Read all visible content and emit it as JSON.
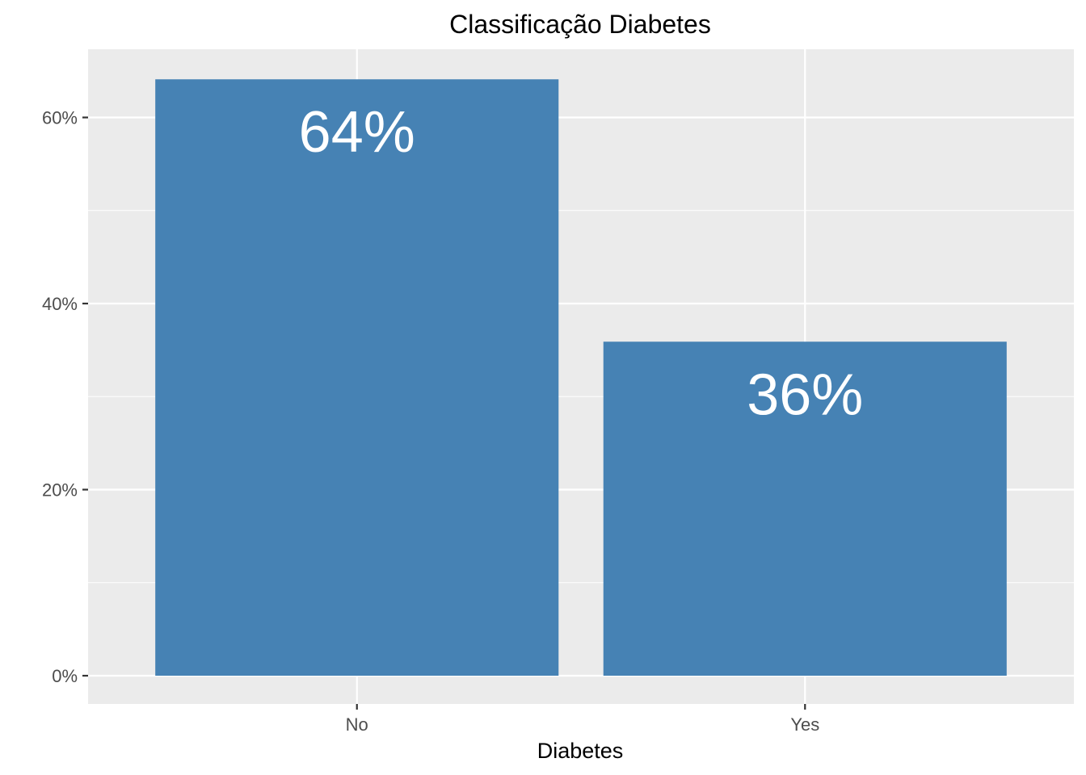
{
  "chart_data": {
    "type": "bar",
    "title": "Classificação Diabetes",
    "xlabel": "Diabetes",
    "ylabel": "",
    "categories": [
      "No",
      "Yes"
    ],
    "values": [
      64.1,
      35.9
    ],
    "value_unit": "percent",
    "data_labels": [
      "64%",
      "36%"
    ],
    "ylim": [
      0,
      67
    ],
    "y_ticks": [
      0,
      20,
      40,
      60
    ],
    "y_tick_labels": [
      "0%",
      "20%",
      "40%",
      "60%"
    ],
    "grid": true,
    "legend": "none",
    "colors": {
      "bar": "#4682B4",
      "panel_background": "#EBEBEB",
      "grid": "#FFFFFF",
      "tick_text": "#4D4D4D",
      "data_label_text": "#FFFFFF"
    }
  }
}
